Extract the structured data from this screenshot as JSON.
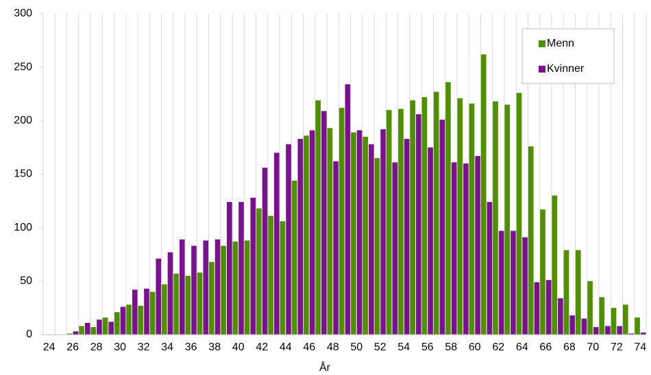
{
  "chart_data": {
    "type": "bar",
    "x_label": "År",
    "categories": [
      "24",
      null,
      "26",
      null,
      "28",
      null,
      "30",
      null,
      "32",
      null,
      "34",
      null,
      "36",
      null,
      "38",
      null,
      "40",
      null,
      "42",
      null,
      "44",
      null,
      "46",
      null,
      "48",
      null,
      "50",
      null,
      "52",
      null,
      "54",
      null,
      "56",
      null,
      "58",
      null,
      "60",
      null,
      "62",
      null,
      "64",
      null,
      "66",
      null,
      "68",
      null,
      "70",
      null,
      "72",
      null,
      "74"
    ],
    "series": [
      {
        "name": "Menn",
        "color": "#4f8f00",
        "values": [
          0,
          0,
          1,
          8,
          7,
          16,
          21,
          28,
          27,
          40,
          47,
          57,
          55,
          58,
          68,
          83,
          87,
          88,
          118,
          111,
          106,
          144,
          186,
          219,
          193,
          212,
          189,
          185,
          165,
          210,
          211,
          219,
          222,
          227,
          236,
          221,
          216,
          262,
          218,
          215,
          226,
          176,
          117,
          130,
          79,
          79,
          50,
          35,
          25,
          28,
          16
        ]
      },
      {
        "name": "Kvinner",
        "color": "#7a1290",
        "values": [
          0,
          0,
          3,
          11,
          14,
          12,
          26,
          42,
          43,
          71,
          77,
          89,
          83,
          88,
          89,
          124,
          124,
          128,
          156,
          170,
          178,
          183,
          191,
          209,
          162,
          234,
          191,
          178,
          192,
          161,
          183,
          206,
          175,
          201,
          161,
          160,
          167,
          124,
          97,
          97,
          91,
          49,
          51,
          34,
          18,
          15,
          7,
          8,
          8,
          1,
          2
        ]
      }
    ],
    "ylim": [
      0,
      300
    ],
    "yticks": [
      0,
      50,
      100,
      150,
      200,
      250,
      300
    ],
    "grid": true,
    "legend": "top-right"
  }
}
